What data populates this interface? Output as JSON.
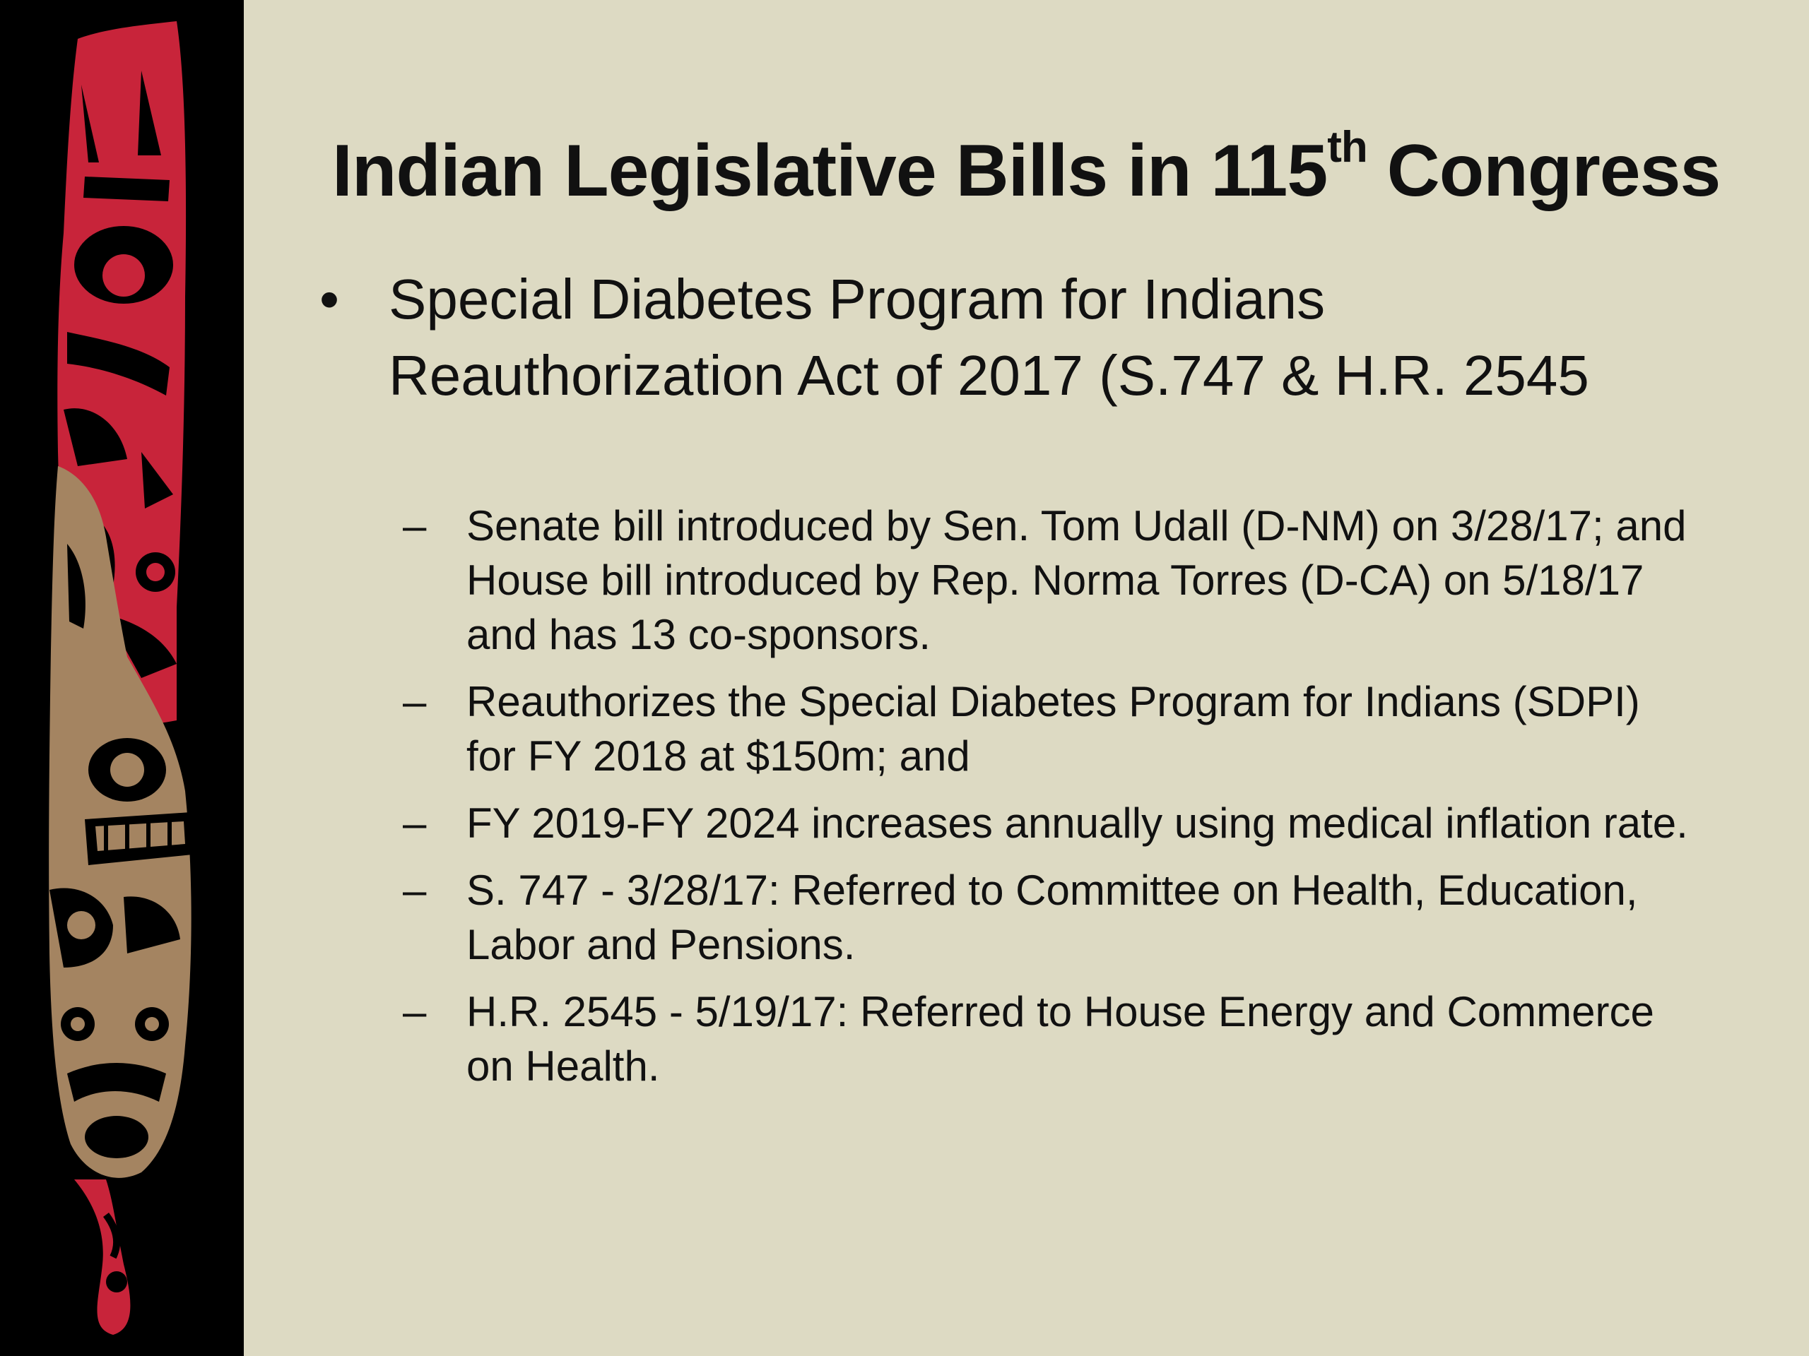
{
  "slide": {
    "title_main": "Indian Legislative Bills in 115",
    "title_sup": "th",
    "title_end": " Congress",
    "bullet": {
      "marker": "•",
      "text": "Special Diabetes Program for Indians Reauthorization Act of 2017 (S.747 & H.R. 2545"
    },
    "sub_marker": "–",
    "sub_items": [
      "Senate bill introduced by Sen. Tom Udall (D-NM) on 3/28/17; and House bill introduced by Rep. Norma Torres (D-CA) on 5/18/17 and has 13 co-sponsors.",
      "Reauthorizes the Special Diabetes Program for Indians (SDPI) for FY 2018 at $150m; and",
      "FY 2019-FY 2024 increases annually using medical inflation rate.",
      "S. 747 - 3/28/17:  Referred to Committee on Health, Education, Labor and Pensions.",
      "H.R. 2545 -  5/19/17:  Referred to House Energy and Commerce on Health."
    ]
  },
  "colors": {
    "background": "#dddac3",
    "banner_black": "#000000",
    "banner_red": "#c8243a",
    "banner_tan": "#a48461"
  }
}
